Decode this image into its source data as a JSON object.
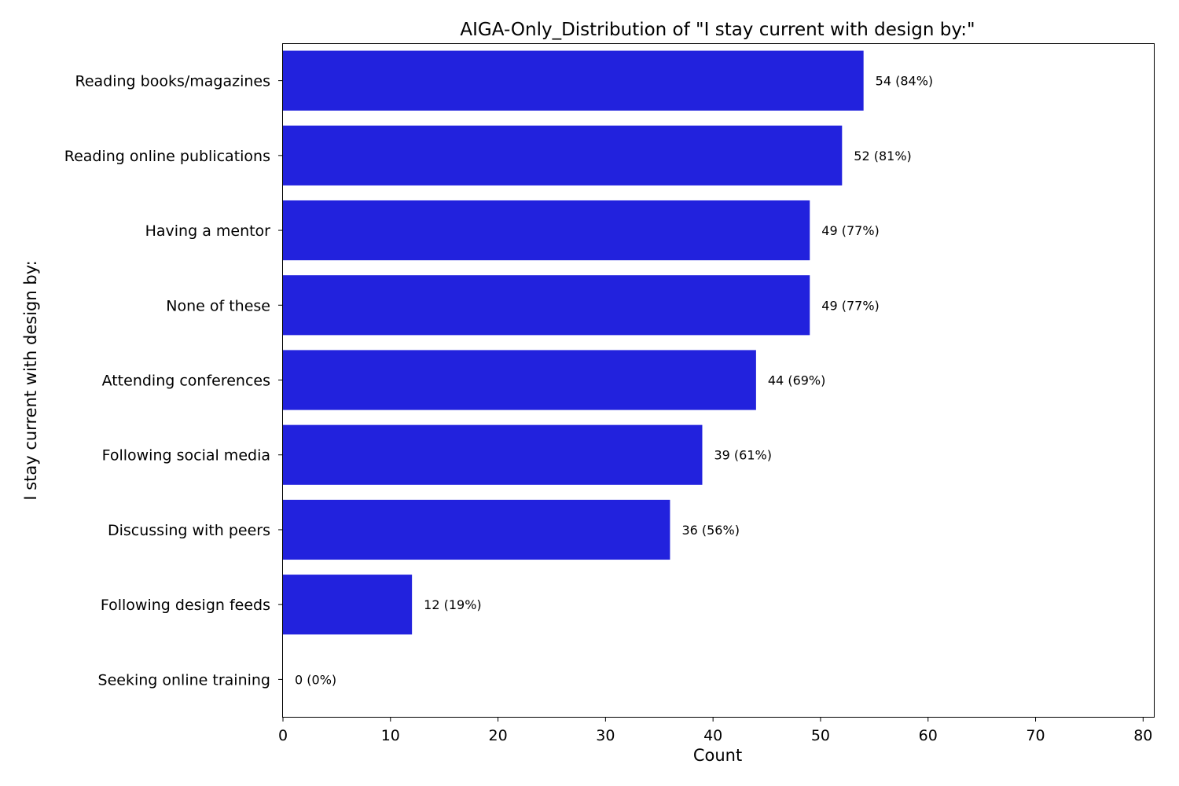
{
  "chart_data": {
    "type": "bar",
    "orientation": "horizontal",
    "title": "AIGA-Only_Distribution of \"I stay current with design by:\"",
    "xlabel": "Count",
    "ylabel": "I stay current with design by:",
    "xlim": [
      0,
      81
    ],
    "xticks": [
      0,
      10,
      20,
      30,
      40,
      50,
      60,
      70,
      80
    ],
    "categories": [
      "Reading books/magazines",
      "Reading online publications",
      "Having a mentor",
      "None of these",
      "Attending conferences",
      "Following social media",
      "Discussing with peers",
      "Following design feeds",
      "Seeking online training"
    ],
    "values": [
      54,
      52,
      49,
      49,
      44,
      39,
      36,
      12,
      0
    ],
    "data_labels": [
      "54 (84%)",
      "52 (81%)",
      "49 (77%)",
      "49 (77%)",
      "44 (69%)",
      "39 (61%)",
      "36 (56%)",
      "12 (19%)",
      "0 (0%)"
    ],
    "bar_color": "#2222dd",
    "grid": false,
    "legend": "none"
  }
}
